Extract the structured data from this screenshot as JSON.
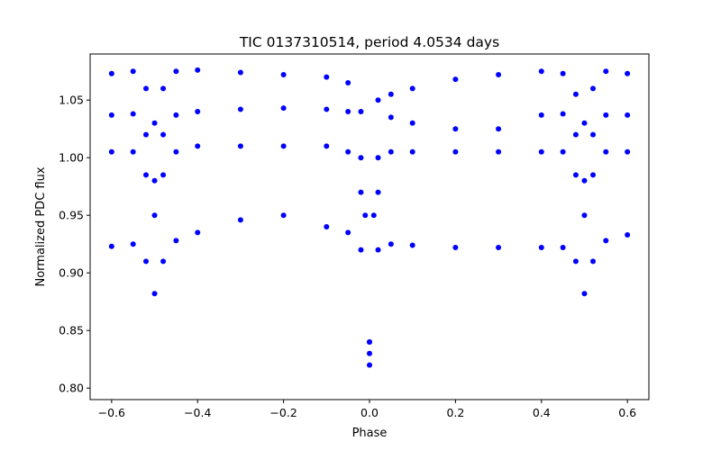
{
  "chart_data": {
    "type": "scatter",
    "title": "TIC 0137310514, period 4.0534 days",
    "xlabel": "Phase",
    "ylabel": "Normalized PDC flux",
    "xlim": [
      -0.65,
      0.65
    ],
    "ylim": [
      0.79,
      1.09
    ],
    "xticks": [
      -0.6,
      -0.4,
      -0.2,
      0.0,
      0.2,
      0.4,
      0.6
    ],
    "xtick_labels": [
      "−0.6",
      "−0.4",
      "−0.2",
      "0.0",
      "0.2",
      "0.4",
      "0.6"
    ],
    "yticks": [
      0.8,
      0.85,
      0.9,
      0.95,
      1.0,
      1.05
    ],
    "ytick_labels": [
      "0.80",
      "0.85",
      "0.90",
      "0.95",
      "1.00",
      "1.05"
    ],
    "grid": false,
    "marker_color": "#0000ff",
    "series": [
      {
        "values_x": [
          -0.6,
          -0.55,
          -0.52,
          -0.5,
          -0.48,
          -0.45,
          -0.4,
          -0.3,
          -0.2,
          -0.1,
          -0.05,
          -0.02,
          -0.01,
          0.0,
          0.01,
          0.02,
          0.05,
          0.1,
          0.2,
          0.3,
          0.4,
          0.45,
          0.48,
          0.5,
          0.52,
          0.55,
          0.6
        ],
        "values_y": [
          1.073,
          1.075,
          1.06,
          1.03,
          1.06,
          1.075,
          1.076,
          1.074,
          1.072,
          1.07,
          1.065,
          1.04,
          0.95,
          0.84,
          0.95,
          1.05,
          1.055,
          1.06,
          1.068,
          1.072,
          1.075,
          1.073,
          1.055,
          1.03,
          1.06,
          1.075,
          1.073
        ]
      },
      {
        "values_x": [
          -0.6,
          -0.55,
          -0.52,
          -0.5,
          -0.48,
          -0.45,
          -0.4,
          -0.3,
          -0.2,
          -0.1,
          -0.05,
          -0.02,
          0.0,
          0.02,
          0.05,
          0.1,
          0.2,
          0.3,
          0.4,
          0.45,
          0.48,
          0.5,
          0.52,
          0.55,
          0.6
        ],
        "values_y": [
          1.037,
          1.038,
          1.02,
          0.98,
          1.02,
          1.037,
          1.04,
          1.042,
          1.043,
          1.042,
          1.04,
          1.0,
          0.84,
          1.0,
          1.035,
          1.03,
          1.025,
          1.025,
          1.037,
          1.038,
          1.02,
          0.98,
          1.02,
          1.037,
          1.037
        ]
      },
      {
        "values_x": [
          -0.6,
          -0.55,
          -0.52,
          -0.5,
          -0.48,
          -0.45,
          -0.4,
          -0.3,
          -0.2,
          -0.1,
          -0.05,
          -0.02,
          0.0,
          0.02,
          0.05,
          0.1,
          0.2,
          0.3,
          0.4,
          0.45,
          0.48,
          0.5,
          0.52,
          0.55,
          0.6
        ],
        "values_y": [
          1.005,
          1.005,
          0.985,
          0.95,
          0.985,
          1.005,
          1.01,
          1.01,
          1.01,
          1.01,
          1.005,
          0.97,
          0.83,
          0.97,
          1.005,
          1.005,
          1.005,
          1.005,
          1.005,
          1.005,
          0.985,
          0.95,
          0.985,
          1.005,
          1.005
        ]
      },
      {
        "values_x": [
          -0.6,
          -0.55,
          -0.52,
          -0.5,
          -0.48,
          -0.45,
          -0.4,
          -0.3,
          -0.2,
          -0.1,
          -0.05,
          -0.02,
          0.0,
          0.02,
          0.05,
          0.1,
          0.2,
          0.3,
          0.4,
          0.45,
          0.48,
          0.5,
          0.52,
          0.55,
          0.6
        ],
        "values_y": [
          0.923,
          0.925,
          0.91,
          0.882,
          0.91,
          0.928,
          0.935,
          0.946,
          0.95,
          0.94,
          0.935,
          0.92,
          0.82,
          0.92,
          0.925,
          0.924,
          0.922,
          0.922,
          0.922,
          0.922,
          0.91,
          0.882,
          0.91,
          0.928,
          0.933
        ]
      }
    ]
  }
}
